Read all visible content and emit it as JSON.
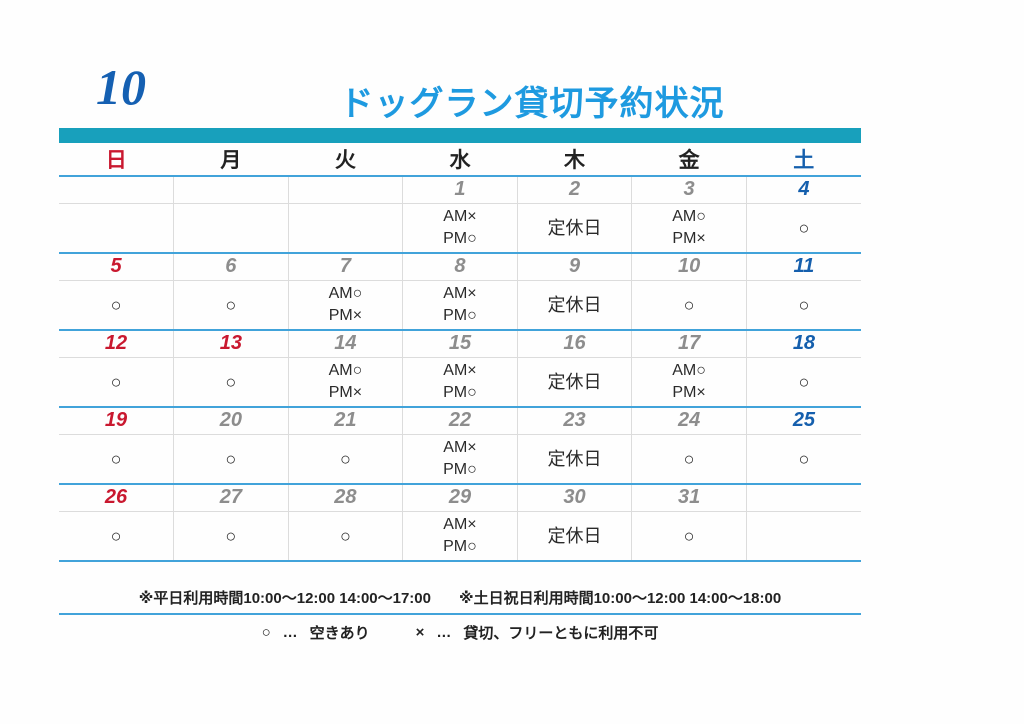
{
  "header": {
    "month": "10",
    "title": "ドッグラン貸切予約状況"
  },
  "colors": {
    "accent_bar": "#18a0bc",
    "separator_line_blue": "#41a3da",
    "title_blue": "#1e9ae0",
    "month_blue": "#1560b2",
    "sunday_red": "#c9182f",
    "saturday_blue": "#155fad",
    "date_gray": "#8d8d8d"
  },
  "weekdays": [
    {
      "key": "sun",
      "label": "日"
    },
    {
      "key": "mon",
      "label": "月"
    },
    {
      "key": "tue",
      "label": "火"
    },
    {
      "key": "wed",
      "label": "水"
    },
    {
      "key": "thu",
      "label": "木"
    },
    {
      "key": "fri",
      "label": "金"
    },
    {
      "key": "sat",
      "label": "土"
    }
  ],
  "weeks": [
    {
      "days": [
        {
          "date": "",
          "color": "",
          "status": []
        },
        {
          "date": "",
          "color": "",
          "status": []
        },
        {
          "date": "",
          "color": "",
          "status": []
        },
        {
          "date": "1",
          "color": "gray",
          "status": [
            "AM×",
            "PM○"
          ]
        },
        {
          "date": "2",
          "color": "gray",
          "status": [
            "定休日"
          ]
        },
        {
          "date": "3",
          "color": "gray",
          "status": [
            "AM○",
            "PM×"
          ]
        },
        {
          "date": "4",
          "color": "blue",
          "status": [
            "○"
          ]
        }
      ]
    },
    {
      "days": [
        {
          "date": "5",
          "color": "red",
          "status": [
            "○"
          ]
        },
        {
          "date": "6",
          "color": "gray",
          "status": [
            "○"
          ]
        },
        {
          "date": "7",
          "color": "gray",
          "status": [
            "AM○",
            "PM×"
          ]
        },
        {
          "date": "8",
          "color": "gray",
          "status": [
            "AM×",
            "PM○"
          ]
        },
        {
          "date": "9",
          "color": "gray",
          "status": [
            "定休日"
          ]
        },
        {
          "date": "10",
          "color": "gray",
          "status": [
            "○"
          ]
        },
        {
          "date": "11",
          "color": "blue",
          "status": [
            "○"
          ]
        }
      ]
    },
    {
      "days": [
        {
          "date": "12",
          "color": "red",
          "status": [
            "○"
          ]
        },
        {
          "date": "13",
          "color": "red",
          "status": [
            "○"
          ]
        },
        {
          "date": "14",
          "color": "gray",
          "status": [
            "AM○",
            "PM×"
          ]
        },
        {
          "date": "15",
          "color": "gray",
          "status": [
            "AM×",
            "PM○"
          ]
        },
        {
          "date": "16",
          "color": "gray",
          "status": [
            "定休日"
          ]
        },
        {
          "date": "17",
          "color": "gray",
          "status": [
            "AM○",
            "PM×"
          ]
        },
        {
          "date": "18",
          "color": "blue",
          "status": [
            "○"
          ]
        }
      ]
    },
    {
      "days": [
        {
          "date": "19",
          "color": "red",
          "status": [
            "○"
          ]
        },
        {
          "date": "20",
          "color": "gray",
          "status": [
            "○"
          ]
        },
        {
          "date": "21",
          "color": "gray",
          "status": [
            "○"
          ]
        },
        {
          "date": "22",
          "color": "gray",
          "status": [
            "AM×",
            "PM○"
          ]
        },
        {
          "date": "23",
          "color": "gray",
          "status": [
            "定休日"
          ]
        },
        {
          "date": "24",
          "color": "gray",
          "status": [
            "○"
          ]
        },
        {
          "date": "25",
          "color": "blue",
          "status": [
            "○"
          ]
        }
      ]
    },
    {
      "days": [
        {
          "date": "26",
          "color": "red",
          "status": [
            "○"
          ]
        },
        {
          "date": "27",
          "color": "gray",
          "status": [
            "○"
          ]
        },
        {
          "date": "28",
          "color": "gray",
          "status": [
            "○"
          ]
        },
        {
          "date": "29",
          "color": "gray",
          "status": [
            "AM×",
            "PM○"
          ]
        },
        {
          "date": "30",
          "color": "gray",
          "status": [
            "定休日"
          ]
        },
        {
          "date": "31",
          "color": "gray",
          "status": [
            "○"
          ]
        },
        {
          "date": "",
          "color": "",
          "status": []
        }
      ]
    }
  ],
  "footer": {
    "note_weekday": "※平日利用時間10:00～12:00  14:00～17:00",
    "note_weekend": "※土日祝日利用時間10:00～12:00  14:00～18:00",
    "legend": {
      "available": {
        "symbol": "○",
        "dots": "…",
        "label": "空きあり"
      },
      "unavailable": {
        "symbol": "×",
        "dots": "…",
        "label": "貸切、フリーともに利用不可"
      }
    }
  }
}
